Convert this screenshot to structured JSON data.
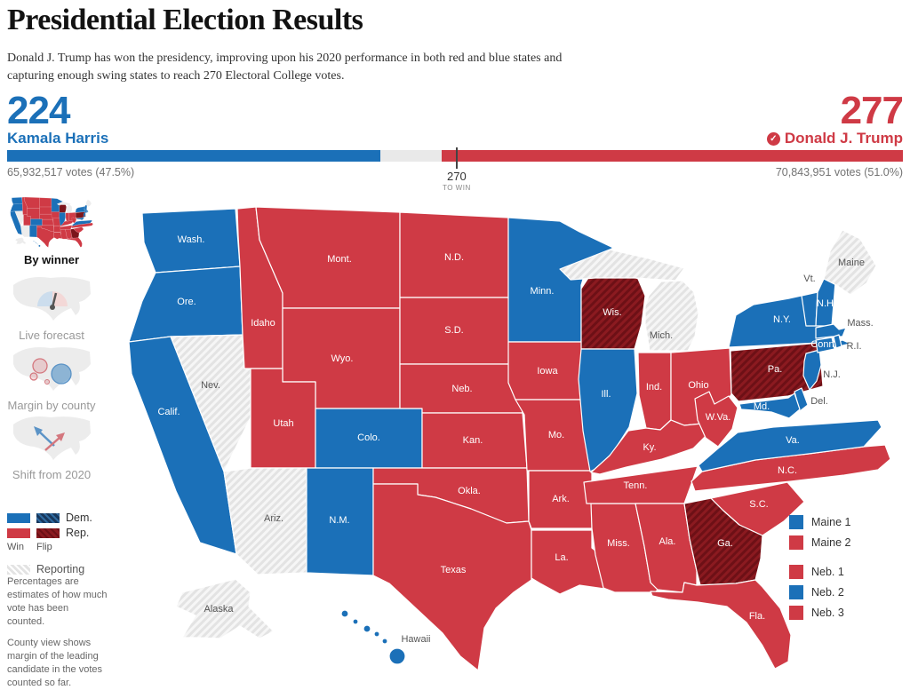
{
  "header": {
    "title": "Presidential Election Results",
    "subtitle": "Donald J. Trump has won the presidency, improving upon his 2020 performance in both red and blue states and capturing enough swing states to reach 270 Electoral College votes."
  },
  "scoreboard": {
    "total_ev": 538,
    "harris": {
      "electoral_votes": "224",
      "name": "Kamala Harris",
      "votes": "65,932,517 votes (47.5%)"
    },
    "trump": {
      "electoral_votes": "277",
      "name": "Donald J. Trump",
      "votes": "70,843,951 votes (51.0%)",
      "check_glyph": "✓"
    },
    "marker": {
      "value": "270",
      "label": "TO WIN"
    }
  },
  "sidebar": {
    "views": [
      {
        "label": "By winner",
        "selected": true
      },
      {
        "label": "Live forecast",
        "selected": false
      },
      {
        "label": "Margin by county",
        "selected": false
      },
      {
        "label": "Shift from 2020",
        "selected": false
      }
    ],
    "legend": {
      "dem": "Dem.",
      "rep": "Rep.",
      "win": "Win",
      "flip": "Flip",
      "reporting": "Reporting"
    },
    "notes": [
      "Percentages are estimates of how much vote has been counted.",
      "County view shows margin of the leading candidate in the votes counted so far."
    ]
  },
  "map": {
    "states": [
      {
        "id": "WA",
        "label": "Wash.",
        "result": "dem"
      },
      {
        "id": "OR",
        "label": "Ore.",
        "result": "dem"
      },
      {
        "id": "CA",
        "label": "Calif.",
        "result": "dem"
      },
      {
        "id": "NV",
        "label": "Nev.",
        "result": "reporting"
      },
      {
        "id": "ID",
        "label": "Idaho",
        "result": "rep"
      },
      {
        "id": "MT",
        "label": "Mont.",
        "result": "rep"
      },
      {
        "id": "WY",
        "label": "Wyo.",
        "result": "rep"
      },
      {
        "id": "UT",
        "label": "Utah",
        "result": "rep"
      },
      {
        "id": "CO",
        "label": "Colo.",
        "result": "dem"
      },
      {
        "id": "AZ",
        "label": "Ariz.",
        "result": "reporting"
      },
      {
        "id": "NM",
        "label": "N.M.",
        "result": "dem"
      },
      {
        "id": "ND",
        "label": "N.D.",
        "result": "rep"
      },
      {
        "id": "SD",
        "label": "S.D.",
        "result": "rep"
      },
      {
        "id": "NE",
        "label": "Neb.",
        "result": "rep"
      },
      {
        "id": "KS",
        "label": "Kan.",
        "result": "rep"
      },
      {
        "id": "OK",
        "label": "Okla.",
        "result": "rep"
      },
      {
        "id": "TX",
        "label": "Texas",
        "result": "rep"
      },
      {
        "id": "MN",
        "label": "Minn.",
        "result": "dem"
      },
      {
        "id": "IA",
        "label": "Iowa",
        "result": "rep"
      },
      {
        "id": "MO",
        "label": "Mo.",
        "result": "rep"
      },
      {
        "id": "AR",
        "label": "Ark.",
        "result": "rep"
      },
      {
        "id": "LA",
        "label": "La.",
        "result": "rep"
      },
      {
        "id": "WI",
        "label": "Wis.",
        "result": "flip"
      },
      {
        "id": "IL",
        "label": "Ill.",
        "result": "dem"
      },
      {
        "id": "MS",
        "label": "Miss.",
        "result": "rep"
      },
      {
        "id": "MI",
        "label": "Mich.",
        "result": "reporting"
      },
      {
        "id": "IN",
        "label": "Ind.",
        "result": "rep"
      },
      {
        "id": "OH",
        "label": "Ohio",
        "result": "rep"
      },
      {
        "id": "KY",
        "label": "Ky.",
        "result": "rep"
      },
      {
        "id": "TN",
        "label": "Tenn.",
        "result": "rep"
      },
      {
        "id": "AL",
        "label": "Ala.",
        "result": "rep"
      },
      {
        "id": "GA",
        "label": "Ga.",
        "result": "flip"
      },
      {
        "id": "FL",
        "label": "Fla.",
        "result": "rep"
      },
      {
        "id": "SC",
        "label": "S.C.",
        "result": "rep"
      },
      {
        "id": "NC",
        "label": "N.C.",
        "result": "rep"
      },
      {
        "id": "VA",
        "label": "Va.",
        "result": "dem"
      },
      {
        "id": "WV",
        "label": "W.Va.",
        "result": "rep"
      },
      {
        "id": "PA",
        "label": "Pa.",
        "result": "flip"
      },
      {
        "id": "NY",
        "label": "N.Y.",
        "result": "dem"
      },
      {
        "id": "NJ",
        "label": "N.J.",
        "result": "dem"
      },
      {
        "id": "VT",
        "label": "Vt.",
        "result": "dem"
      },
      {
        "id": "NH",
        "label": "N.H.",
        "result": "dem"
      },
      {
        "id": "ME",
        "label": "Maine",
        "result": "reporting"
      },
      {
        "id": "MA",
        "label": "Mass.",
        "result": "dem"
      },
      {
        "id": "CT",
        "label": "Conn.",
        "result": "dem"
      },
      {
        "id": "RI",
        "label": "R.I.",
        "result": "dem"
      },
      {
        "id": "DE",
        "label": "Del.",
        "result": "dem"
      },
      {
        "id": "MD",
        "label": "Md.",
        "result": "dem"
      },
      {
        "id": "AK",
        "label": "Alaska",
        "result": "reporting"
      },
      {
        "id": "HI",
        "label": "Hawaii",
        "result": "dem"
      }
    ]
  },
  "district_legend": [
    {
      "label": "Maine 1",
      "result": "dem"
    },
    {
      "label": "Maine 2",
      "result": "rep"
    },
    {
      "label": "Neb. 1",
      "result": "rep"
    },
    {
      "label": "Neb. 2",
      "result": "dem"
    },
    {
      "label": "Neb. 3",
      "result": "rep"
    }
  ],
  "colors": {
    "dem": "#1b70b8",
    "rep": "#cf3a45",
    "flip_rep": "#8b1a20",
    "flip_rep_stripe": "#6d1016",
    "flip_dem": "#17375c",
    "flip_dem_stripe": "#2f6aa0",
    "reporting": "#e3e3e3",
    "reporting_stripe": "#f6f6f6",
    "bar_gap": "#e9e9e9"
  }
}
